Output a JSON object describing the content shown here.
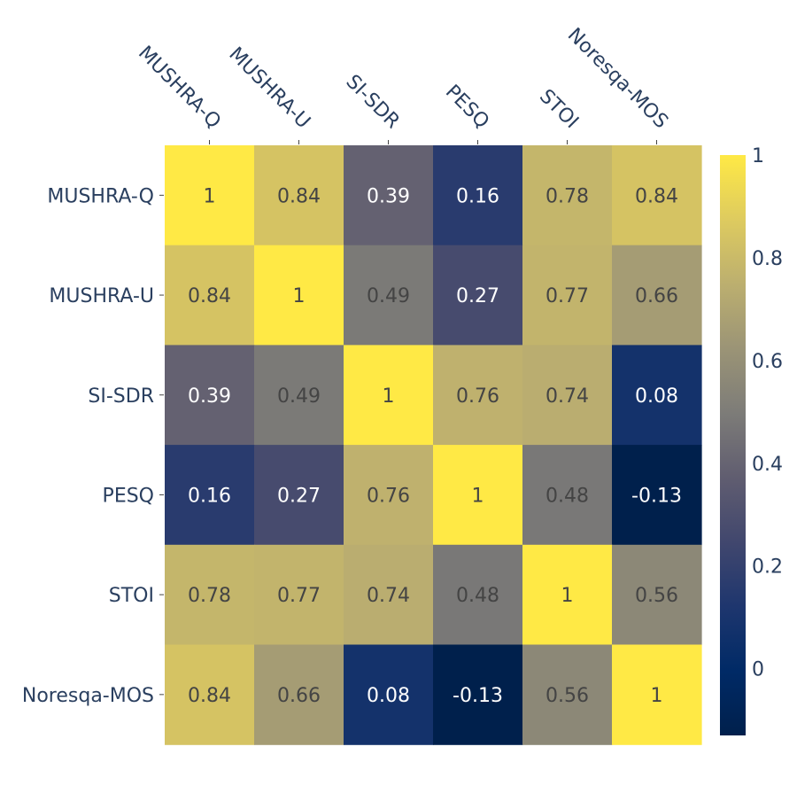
{
  "chart_data": {
    "type": "heatmap",
    "title": "",
    "x_labels": [
      "MUSHRA-Q",
      "MUSHRA-U",
      "SI-SDR",
      "PESQ",
      "STOI",
      "Noresqa-MOS"
    ],
    "y_labels": [
      "MUSHRA-Q",
      "MUSHRA-U",
      "SI-SDR",
      "PESQ",
      "STOI",
      "Noresqa-MOS"
    ],
    "values": [
      [
        1,
        0.84,
        0.39,
        0.16,
        0.78,
        0.84
      ],
      [
        0.84,
        1,
        0.49,
        0.27,
        0.77,
        0.66
      ],
      [
        0.39,
        0.49,
        1,
        0.76,
        0.74,
        0.08
      ],
      [
        0.16,
        0.27,
        0.76,
        1,
        0.48,
        -0.13
      ],
      [
        0.78,
        0.77,
        0.74,
        0.48,
        1,
        0.56
      ],
      [
        0.84,
        0.66,
        0.08,
        -0.13,
        0.56,
        1
      ]
    ],
    "zmin": -0.13,
    "zmax": 1,
    "colorscale": "cividis",
    "colorbar": {
      "ticks": [
        0,
        0.2,
        0.4,
        0.6,
        0.8,
        1
      ],
      "tick_labels": [
        "0",
        "0.2",
        "0.4",
        "0.6",
        "0.8",
        "1"
      ],
      "placement": "right"
    },
    "x_axis_side": "top"
  },
  "colors": {
    "axis_text": "#2a3f5f",
    "tick": "#444444",
    "label_light": "#ffffff",
    "label_dark": "#444444"
  }
}
